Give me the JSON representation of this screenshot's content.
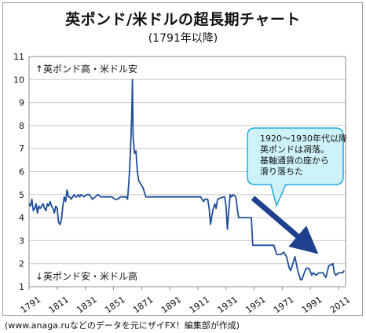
{
  "title": "英ポンド/米ドルの超長期チャート",
  "subtitle": "(1791年以降)",
  "source": "(www.anaga.ruなどのデータを元にザイFX！編集部が作成)",
  "colors": {
    "line": "#1f4e9a",
    "arrow": "#1f3f8f",
    "callout_fill": "#cdf3f8",
    "callout_border": "#27a7e0",
    "grid": "#c9c9c9"
  },
  "chart_data": {
    "type": "line",
    "title": "英ポンド/米ドルの超長期チャート",
    "subtitle": "(1791年以降)",
    "xlabel": "",
    "ylabel": "",
    "xlim": [
      1791,
      2016
    ],
    "ylim": [
      1,
      11
    ],
    "grid": "horizontal",
    "y_ticks": [
      1,
      2,
      3,
      4,
      5,
      6,
      7,
      8,
      9,
      10,
      11
    ],
    "x_ticks": [
      "1791",
      "1811",
      "1831",
      "1851",
      "1871",
      "1891",
      "1911",
      "1931",
      "1951",
      "1971",
      "1991",
      "2011"
    ],
    "annotations": {
      "top_label": "↑英ポンド高・米ドル安",
      "bottom_label": "↓英ポンド安・米ドル高",
      "callout_lines": [
        "1920～1930年代以降",
        "英ポンドは凋落。",
        "基軸通貨の座から",
        "滑り落ちた"
      ]
    },
    "series": [
      {
        "x": [
          1791,
          1792,
          1793,
          1794,
          1795,
          1796,
          1797,
          1798,
          1799,
          1800,
          1801,
          1802,
          1803,
          1804,
          1805,
          1806,
          1807,
          1808,
          1809,
          1810,
          1811,
          1812,
          1813,
          1814,
          1815,
          1816,
          1817,
          1818,
          1819,
          1820,
          1821,
          1822,
          1823,
          1824,
          1825,
          1826,
          1827,
          1828,
          1830,
          1832,
          1834,
          1836,
          1838,
          1840,
          1842,
          1844,
          1846,
          1848,
          1850,
          1852,
          1854,
          1856,
          1858,
          1860,
          1861,
          1862,
          1863,
          1864,
          1864.5,
          1865,
          1866,
          1867,
          1868,
          1869,
          1870,
          1871,
          1872,
          1874,
          1876,
          1878,
          1880,
          1890,
          1900,
          1910,
          1913,
          1914,
          1915,
          1916,
          1918,
          1919,
          1920,
          1921,
          1922,
          1923,
          1924,
          1925,
          1929,
          1930,
          1931,
          1932,
          1933,
          1934,
          1935,
          1936,
          1938,
          1939,
          1940,
          1945,
          1949,
          1950,
          1955,
          1960,
          1965,
          1967,
          1968,
          1970,
          1972,
          1974,
          1976,
          1977,
          1978,
          1980,
          1981,
          1982,
          1984,
          1985,
          1986,
          1988,
          1990,
          1992,
          1993,
          1995,
          1997,
          2000,
          2002,
          2004,
          2007,
          2008,
          2009,
          2011,
          2012,
          2014,
          2015
        ],
        "y": [
          4.6,
          4.5,
          4.8,
          4.3,
          4.4,
          4.6,
          4.2,
          4.5,
          4.4,
          4.5,
          4.6,
          4.4,
          4.3,
          4.6,
          4.5,
          4.7,
          4.5,
          4.4,
          4.2,
          4.5,
          4.4,
          3.8,
          3.7,
          3.9,
          4.5,
          4.9,
          4.7,
          5.2,
          4.9,
          4.9,
          4.8,
          4.9,
          5.0,
          4.9,
          4.9,
          5.0,
          4.9,
          5.0,
          4.9,
          5.0,
          5.0,
          4.8,
          4.9,
          5.0,
          4.9,
          4.9,
          4.9,
          4.9,
          4.9,
          4.8,
          4.8,
          4.9,
          4.9,
          4.9,
          4.8,
          5.6,
          6.8,
          8.5,
          10.0,
          7.5,
          6.8,
          6.9,
          6.0,
          5.6,
          5.5,
          5.4,
          5.3,
          4.9,
          4.9,
          4.9,
          4.9,
          4.9,
          4.9,
          4.9,
          4.9,
          4.8,
          4.7,
          4.8,
          4.8,
          4.4,
          3.7,
          4.1,
          4.4,
          4.6,
          4.4,
          4.8,
          4.9,
          4.9,
          4.5,
          3.5,
          4.3,
          5.0,
          4.9,
          5.0,
          4.9,
          4.4,
          4.0,
          4.0,
          4.0,
          2.8,
          2.8,
          2.8,
          2.8,
          2.4,
          2.4,
          2.4,
          2.5,
          2.3,
          1.8,
          1.7,
          1.9,
          2.3,
          2.0,
          1.7,
          1.3,
          1.3,
          1.5,
          1.8,
          1.8,
          1.5,
          1.6,
          1.5,
          1.6,
          1.6,
          1.4,
          1.9,
          2.0,
          1.6,
          1.5,
          1.6,
          1.6,
          1.6,
          1.7
        ]
      }
    ]
  }
}
